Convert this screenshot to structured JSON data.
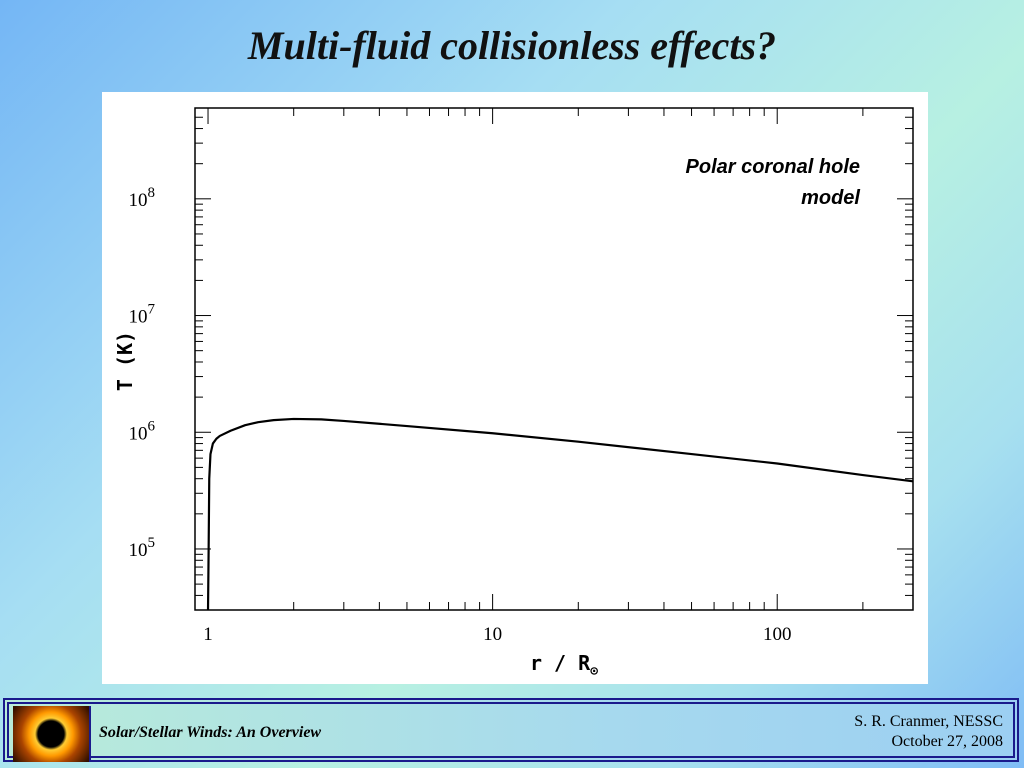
{
  "slide": {
    "title": "Multi-fluid collisionless effects?"
  },
  "chart_data": {
    "type": "line",
    "annotation_lines": [
      "Polar coronal hole",
      "model"
    ],
    "xlabel": "r / R",
    "xlabel_sub": "⊙",
    "ylabel": "T (K)",
    "x_scale": "log",
    "y_scale": "log",
    "xlim": [
      0.9,
      300
    ],
    "ylim": [
      30000,
      600000000
    ],
    "x_ticks": [
      {
        "value": 1,
        "label": "1"
      },
      {
        "value": 10,
        "label": "10"
      },
      {
        "value": 100,
        "label": "100"
      }
    ],
    "y_ticks": [
      {
        "value": 100000,
        "base": "10",
        "exp": "5"
      },
      {
        "value": 1000000,
        "base": "10",
        "exp": "6"
      },
      {
        "value": 10000000,
        "base": "10",
        "exp": "7"
      },
      {
        "value": 100000000,
        "base": "10",
        "exp": "8"
      }
    ],
    "series": [
      {
        "x": [
          1.0,
          1.005,
          1.01,
          1.02,
          1.04,
          1.07,
          1.1,
          1.2,
          1.35,
          1.5,
          1.7,
          2.0,
          2.5,
          3.0,
          5.0,
          10.0,
          20.0,
          50.0,
          100.0,
          200.0,
          300.0
        ],
        "y": [
          30000,
          100000,
          400000,
          650000,
          800000,
          880000,
          930000,
          1030000,
          1150000,
          1220000,
          1270000,
          1300000,
          1290000,
          1250000,
          1130000,
          980000,
          830000,
          650000,
          540000,
          430000,
          380000
        ]
      }
    ]
  },
  "footer": {
    "left_text": "Solar/Stellar Winds: An Overview",
    "author": "S. R. Cranmer, NESSC",
    "date": "October 27, 2008"
  }
}
